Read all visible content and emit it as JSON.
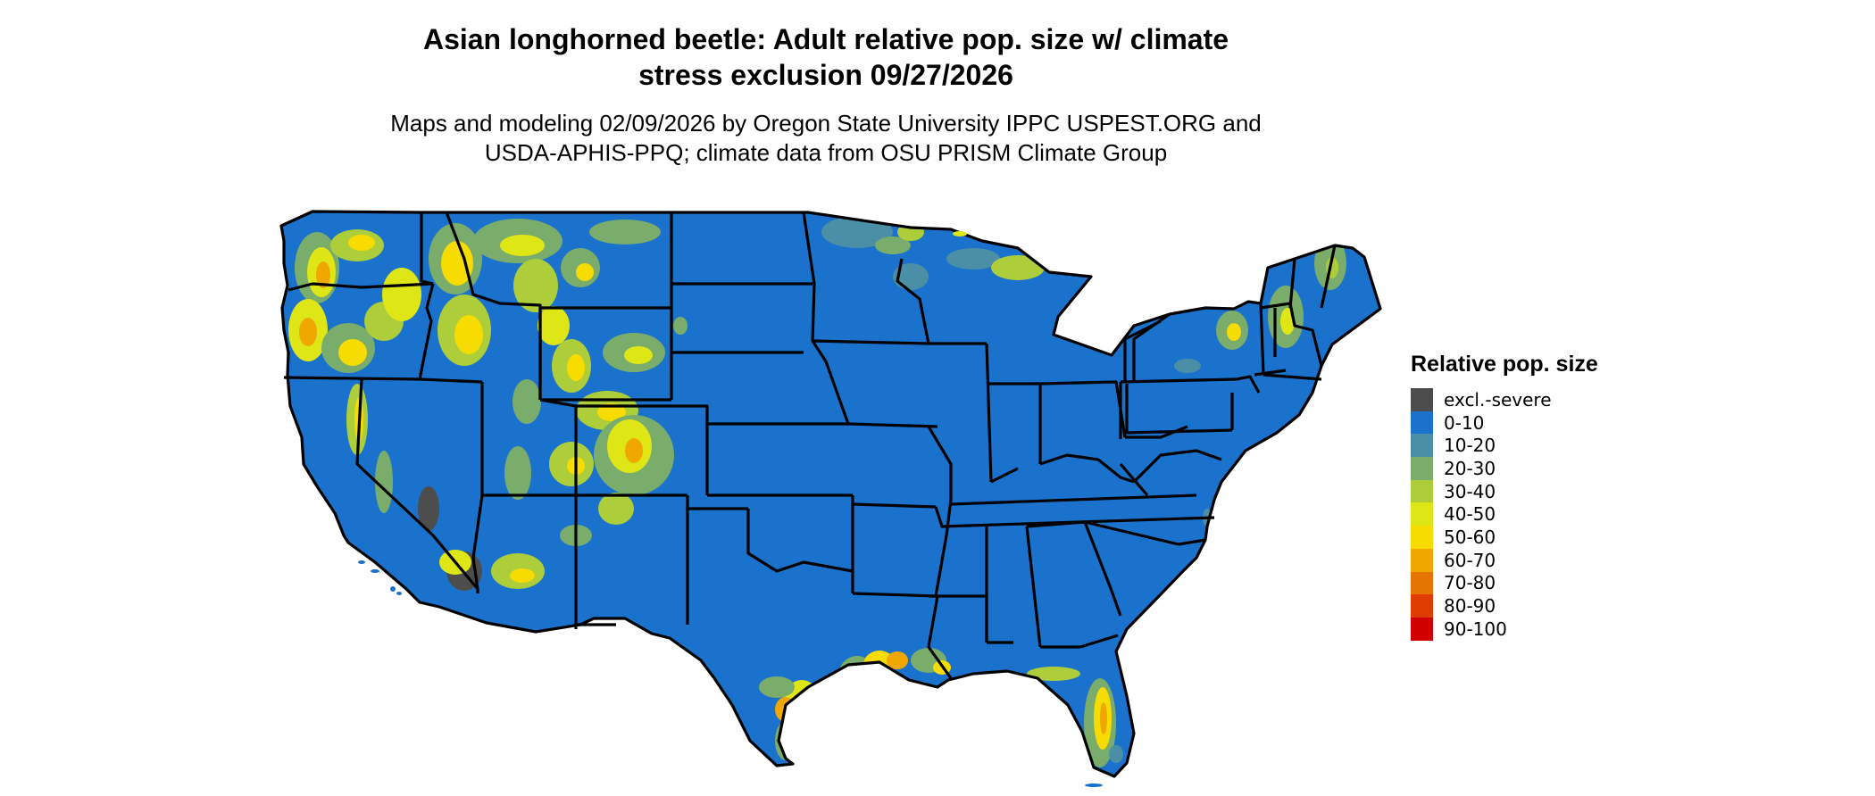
{
  "title": {
    "line1": "Asian longhorned beetle: Adult relative pop. size w/ climate",
    "line2": "stress exclusion 09/27/2026"
  },
  "subtitle": {
    "line1": "Maps and modeling 02/09/2026 by Oregon State University IPPC USPEST.ORG and",
    "line2": "USDA-APHIS-PPQ; climate data from OSU PRISM Climate Group"
  },
  "map": {
    "background_color": "#1a72cc",
    "border_color": "#000000"
  },
  "legend": {
    "title": "Relative pop. size",
    "items": [
      {
        "label": "excl.-severe",
        "color": "#4d4d4d"
      },
      {
        "label": "0-10",
        "color": "#1a72cc"
      },
      {
        "label": "10-20",
        "color": "#4a8fa6"
      },
      {
        "label": "20-30",
        "color": "#7aad6c"
      },
      {
        "label": "30-40",
        "color": "#adcd3a"
      },
      {
        "label": "40-50",
        "color": "#dfe615"
      },
      {
        "label": "50-60",
        "color": "#f6dc00"
      },
      {
        "label": "60-70",
        "color": "#f0a800"
      },
      {
        "label": "70-80",
        "color": "#e47500"
      },
      {
        "label": "80-90",
        "color": "#de3c00"
      },
      {
        "label": "90-100",
        "color": "#d10000"
      }
    ]
  }
}
